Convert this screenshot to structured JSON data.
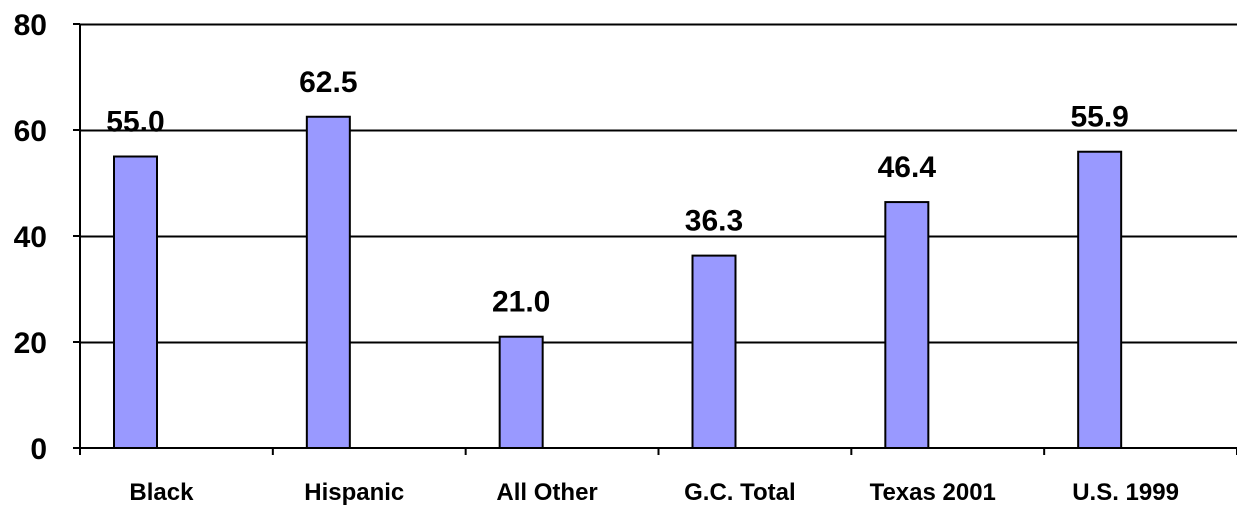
{
  "chart_data": {
    "type": "bar",
    "title": "",
    "xlabel": "",
    "ylabel": "",
    "categories": [
      "Black",
      "Hispanic",
      "All Other",
      "G.C. Total",
      "Texas 2001",
      "U.S. 1999"
    ],
    "values": [
      55.0,
      62.5,
      21.0,
      36.3,
      46.4,
      55.9
    ],
    "data_labels": [
      "55.0",
      "62.5",
      "21.0",
      "36.3",
      "46.4",
      "55.9"
    ],
    "ylim": [
      0,
      80
    ],
    "yticks": [
      0,
      20,
      40,
      60,
      80
    ],
    "ytick_labels": [
      "0",
      "20",
      "40",
      "60",
      "80"
    ],
    "grid": true,
    "legend": "none",
    "bar_color": "#9999FF",
    "bar_edge_color": "#000000"
  }
}
